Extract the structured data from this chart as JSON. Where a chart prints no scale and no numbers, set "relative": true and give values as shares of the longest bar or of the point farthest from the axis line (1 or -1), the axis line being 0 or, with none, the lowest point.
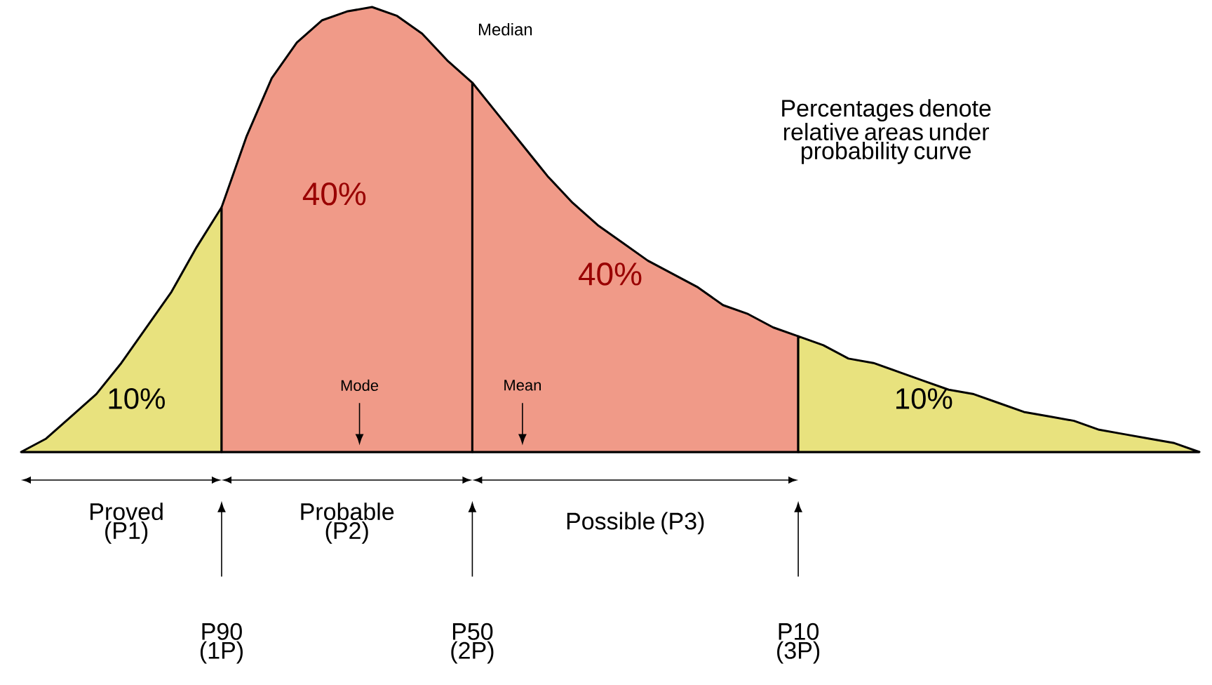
{
  "chart_data": {
    "type": "area",
    "relative": true,
    "categories": [
      null,
      null,
      null,
      null,
      null,
      null,
      null,
      null,
      null,
      null,
      null,
      null,
      null,
      null,
      null,
      null,
      null,
      null,
      null,
      null,
      null,
      null,
      null,
      null,
      null,
      null,
      null,
      null,
      null,
      null,
      null,
      null,
      null,
      null,
      null,
      null,
      null,
      null,
      null,
      null,
      null,
      null,
      null,
      null,
      null,
      null,
      null,
      null
    ],
    "series": [
      {
        "color": "#e8e27e",
        "values": [
          0,
          0.03,
          0.08,
          0.13,
          0.2,
          0.28,
          0.36,
          0.46,
          0.55,
          null,
          null,
          null,
          null,
          null,
          null,
          null,
          null,
          null,
          null,
          null,
          null,
          null,
          null,
          null,
          null,
          null,
          null,
          null,
          null,
          null,
          null,
          null,
          null,
          null,
          null,
          null,
          null,
          null,
          null,
          null,
          null,
          null,
          null,
          null,
          null,
          null,
          null,
          null
        ]
      },
      {
        "color": "#f09a88",
        "values": [
          null,
          null,
          null,
          null,
          null,
          null,
          null,
          null,
          0.55,
          0.71,
          0.84,
          0.92,
          0.97,
          0.99,
          1,
          0.98,
          0.94,
          0.88,
          0.83,
          null,
          null,
          null,
          null,
          null,
          null,
          null,
          null,
          null,
          null,
          null,
          null,
          null,
          null,
          null,
          null,
          null,
          null,
          null,
          null,
          null,
          null,
          null,
          null,
          null,
          null,
          null,
          null,
          null
        ]
      },
      {
        "color": "#f09a88",
        "values": [
          null,
          null,
          null,
          null,
          null,
          null,
          null,
          null,
          null,
          null,
          null,
          null,
          null,
          null,
          null,
          null,
          null,
          null,
          0.83,
          0.76,
          0.69,
          0.62,
          0.56,
          0.51,
          0.47,
          0.43,
          0.4,
          0.37,
          0.33,
          0.31,
          0.28,
          0.26,
          null,
          null,
          null,
          null,
          null,
          null,
          null,
          null,
          null,
          null,
          null,
          null,
          null,
          null,
          null,
          null
        ]
      },
      {
        "color": "#e8e27e",
        "values": [
          null,
          null,
          null,
          null,
          null,
          null,
          null,
          null,
          null,
          null,
          null,
          null,
          null,
          null,
          null,
          null,
          null,
          null,
          null,
          null,
          null,
          null,
          null,
          null,
          null,
          null,
          null,
          null,
          null,
          null,
          null,
          0.26,
          0.24,
          0.21,
          0.2,
          0.18,
          0.16,
          0.14,
          0.13,
          0.11,
          0.09,
          0.08,
          0.07,
          0.05,
          0.04,
          0.03,
          0.02,
          0
        ]
      }
    ],
    "annotations": [
      "Median",
      "Percentages denote relative areas under probability curve",
      "40%",
      "40%",
      "10%",
      "10%",
      "Mode",
      "Mean",
      "Proved (P1)",
      "Probable (P2)",
      "Possible (P3)",
      "P90 (1P)",
      "P50 (2P)",
      "P10 (3P)"
    ]
  }
}
